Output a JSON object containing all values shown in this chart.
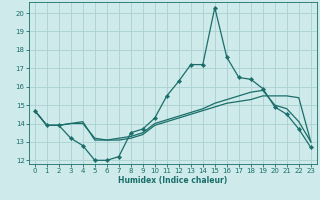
{
  "xlabel": "Humidex (Indice chaleur)",
  "xlim": [
    -0.5,
    23.5
  ],
  "ylim": [
    11.8,
    20.6
  ],
  "yticks": [
    12,
    13,
    14,
    15,
    16,
    17,
    18,
    19,
    20
  ],
  "xticks": [
    0,
    1,
    2,
    3,
    4,
    5,
    6,
    7,
    8,
    9,
    10,
    11,
    12,
    13,
    14,
    15,
    16,
    17,
    18,
    19,
    20,
    21,
    22,
    23
  ],
  "bg_color": "#ceeaea",
  "grid_color": "#a8d0d0",
  "line_color": "#1a6e6a",
  "line1_y": [
    14.7,
    13.9,
    13.9,
    13.2,
    12.8,
    12.0,
    12.0,
    12.2,
    13.5,
    13.7,
    14.3,
    15.5,
    16.3,
    17.2,
    17.2,
    20.3,
    17.6,
    16.5,
    16.4,
    15.9,
    14.9,
    14.5,
    13.7,
    12.7
  ],
  "line2_y": [
    14.7,
    13.9,
    13.9,
    14.0,
    14.0,
    13.2,
    13.1,
    13.2,
    13.3,
    13.5,
    14.0,
    14.2,
    14.4,
    14.6,
    14.8,
    15.1,
    15.3,
    15.5,
    15.7,
    15.8,
    15.0,
    14.8,
    14.1,
    13.0
  ],
  "line3_y": [
    14.7,
    13.9,
    13.9,
    14.0,
    14.1,
    13.1,
    13.1,
    13.1,
    13.2,
    13.4,
    13.9,
    14.1,
    14.3,
    14.5,
    14.7,
    14.9,
    15.1,
    15.2,
    15.3,
    15.5,
    15.5,
    15.5,
    15.4,
    13.0
  ]
}
